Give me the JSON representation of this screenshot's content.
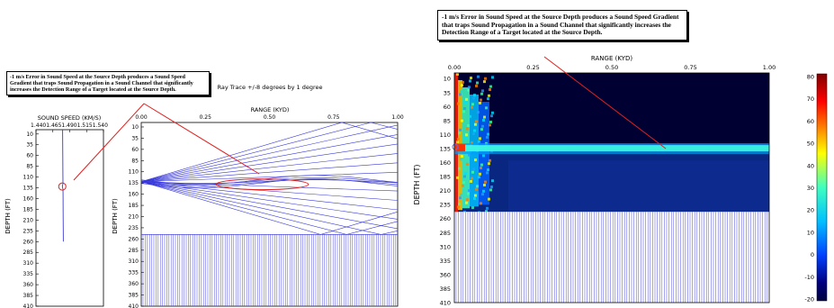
{
  "callouts": {
    "left": "-1 m/s Error in Sound Speed at the Source Depth produces a Sound Speed Gradient that traps Sound Propagation in a Sound Channel that significantly increases the Detection Range of a Target located at the Source Depth.",
    "right": "-1 m/s Error in Sound Speed at the Source Depth produces a Sound Speed Gradient that traps Sound Propagation in a Sound Channel that significantly increases the Detection Range of a Target located at the Source Depth."
  },
  "colors": {
    "ray": "#3a3ad8",
    "callout_line": "#e02020",
    "profile": "#3a3ad8",
    "bottom_hatch": "#4a4ae0"
  },
  "chart_data": [
    {
      "type": "line",
      "xlabel": "SOUND SPEED (KM/S)",
      "ylabel": "DEPTH (FT)",
      "x_tick_labels": [
        "1.440",
        "1.465",
        "1.490",
        "1.515",
        "1.540"
      ],
      "x_tick_text": "1.4401.4651.4901.5151.540",
      "y_ticks": [
        10,
        35,
        60,
        85,
        110,
        135,
        160,
        185,
        210,
        235,
        260,
        285,
        310,
        335,
        360,
        385,
        410
      ],
      "ylim": [
        0,
        410
      ],
      "xlim": [
        1.44,
        1.54
      ],
      "series": [
        {
          "depth": [
            0,
            60,
            100,
            125,
            132,
            138,
            150,
            200,
            260
          ],
          "speed": [
            1.4795,
            1.4797,
            1.4799,
            1.48,
            1.479,
            1.48,
            1.4801,
            1.4803,
            1.4805
          ]
        }
      ],
      "highlight": {
        "depth": 132,
        "speed": 1.479
      }
    },
    {
      "type": "line",
      "title": "Ray Trace +/-8 degrees by 1 degree",
      "xlabel": "RANGE (KYD)",
      "ylabel": "DEPTH (FT)",
      "x_ticks": [
        0.0,
        0.25,
        0.5,
        0.75,
        1.0
      ],
      "x_tick_labels": [
        "0.00",
        "0.25",
        "0.50",
        "0.75",
        "1.00"
      ],
      "y_ticks": [
        10,
        35,
        60,
        85,
        110,
        135,
        160,
        185,
        210,
        235,
        260,
        285,
        310,
        335,
        360,
        385,
        410
      ],
      "xlim": [
        0,
        1
      ],
      "ylim": [
        0,
        410
      ],
      "source": {
        "range": 0.0,
        "depth": 132
      },
      "bottom_depth": 250,
      "launch_angles_deg": [
        -8,
        -7,
        -6,
        -5,
        -4,
        -3,
        -2,
        -1,
        1,
        2,
        3,
        4,
        5,
        6,
        7,
        8
      ],
      "highlight_ellipse": {
        "center_range": 0.5,
        "center_depth": 132,
        "range_halfwidth": 0.3,
        "depth_halfheight": 8
      }
    },
    {
      "type": "heatmap",
      "xlabel": "RANGE (KYD)",
      "ylabel": "DEPTH (FT)",
      "x_ticks": [
        0.0,
        0.25,
        0.5,
        0.75,
        1.0
      ],
      "x_tick_labels": [
        "0.00",
        "0.25",
        "0.50",
        "0.75",
        "1.00"
      ],
      "y_ticks": [
        10,
        35,
        60,
        85,
        110,
        135,
        160,
        185,
        210,
        235,
        260,
        285,
        310,
        335,
        360,
        385,
        410
      ],
      "xlim": [
        0,
        1
      ],
      "ylim": [
        0,
        410
      ],
      "bottom_depth": 248,
      "source_depth": 132,
      "colorbar": {
        "ticks": [
          80,
          70,
          60,
          50,
          40,
          30,
          20,
          10,
          0,
          -10,
          -20
        ],
        "tick_labels": [
          "80",
          "70",
          "60",
          "50",
          "40",
          "30",
          "20",
          "10",
          "0",
          "-10",
          "-20"
        ],
        "min": -20,
        "max": 80
      }
    }
  ]
}
